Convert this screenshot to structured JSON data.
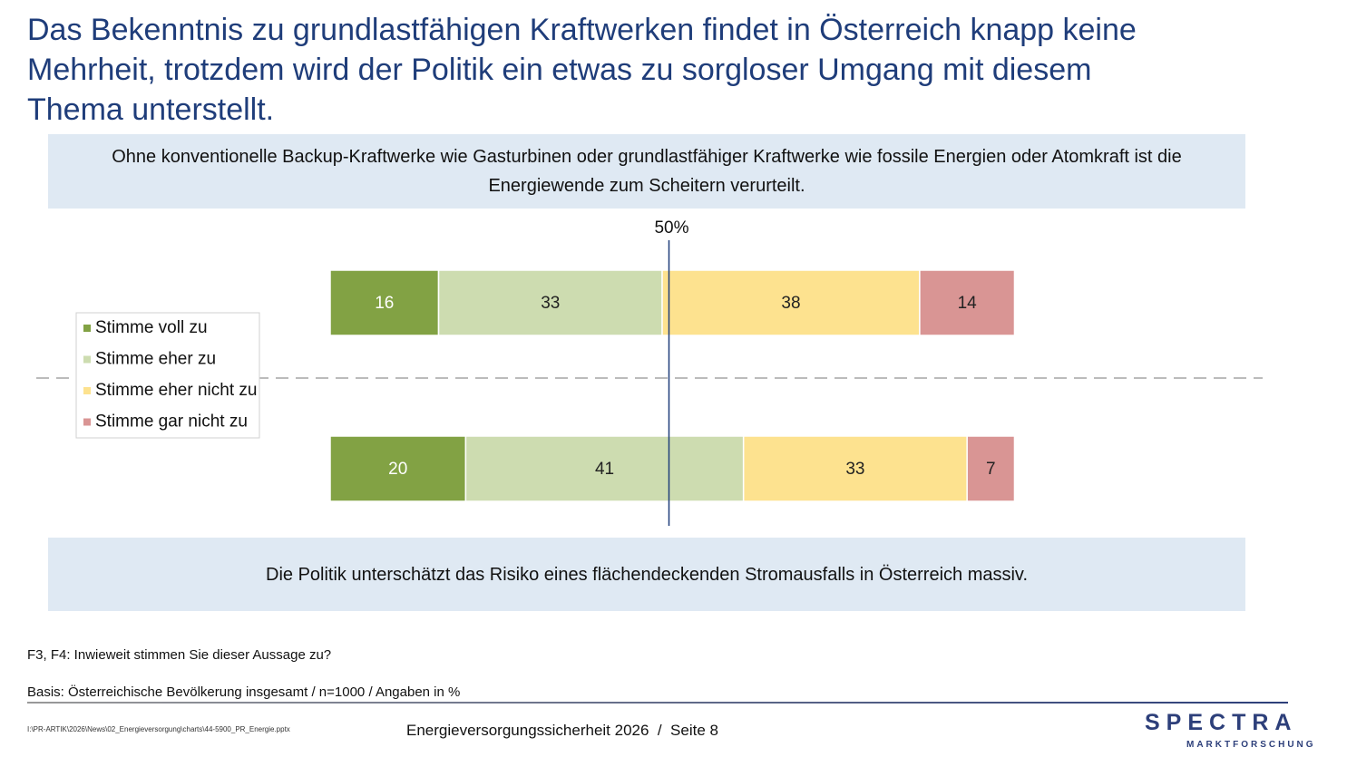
{
  "title": "Das Bekenntnis zu grundlastfähigen Kraftwerken findet in Österreich knapp keine Mehrheit, trotzdem wird der Politik ein etwas zu sorgloser Umgang mit diesem Thema unterstellt.",
  "chart_data": {
    "type": "bar",
    "orientation": "horizontal",
    "stacked": true,
    "categories": [
      "Ohne konventionelle Backup-Kraftwerke wie Gasturbinen oder grundlastfähiger Kraftwerke wie fossile Energien oder Atomkraft ist die Energiewende zum Scheitern verurteilt.",
      "Die Politik unterschätzt das Risiko eines flächendeckenden Stromausfalls in Österreich massiv."
    ],
    "series": [
      {
        "name": "Stimme voll zu",
        "color": "#82a244",
        "values": [
          16,
          20
        ]
      },
      {
        "name": "Stimme eher zu",
        "color": "#cddcb0",
        "values": [
          33,
          41
        ]
      },
      {
        "name": "Stimme eher nicht zu",
        "color": "#fde28f",
        "values": [
          38,
          33
        ]
      },
      {
        "name": "Stimme gar nicht zu",
        "color": "#d99594",
        "values": [
          14,
          7
        ]
      }
    ],
    "reference_line": {
      "value": 50,
      "label": "50%"
    },
    "legend": "left"
  },
  "footer": {
    "question": "F3, F4: Inwieweit stimmen Sie dieser Aussage zu?",
    "basis": "Basis: Österreichische Bevölkerung insgesamt / n=1000 / Angaben in %",
    "file": "I:\\PR-ARTIK\\2026\\News\\02_Energieversorgung\\charts\\44-5900_PR_Energie.pptx",
    "page": "Energieversorgungssicherheit 2026  /  Seite 8",
    "logo": "SPECTRA",
    "logo_sub": "MARKTFORSCHUNG"
  }
}
